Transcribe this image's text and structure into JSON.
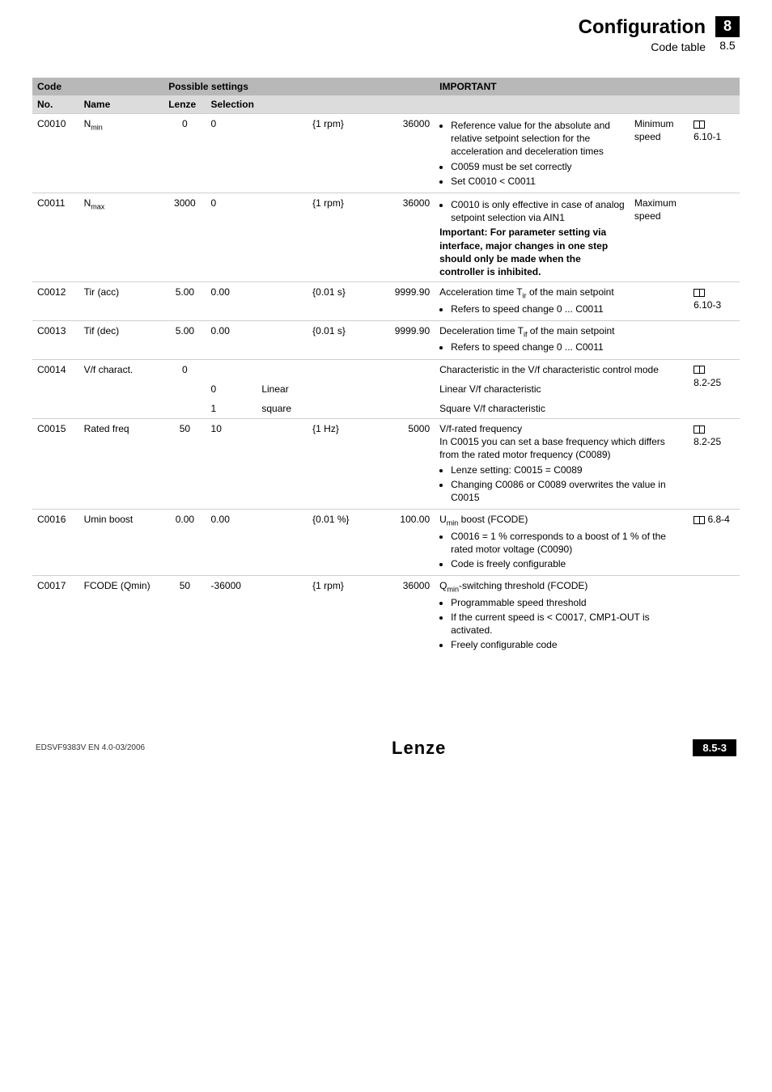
{
  "header": {
    "title": "Configuration",
    "subtitle": "Code table",
    "chapter": "8",
    "section": "8.5"
  },
  "table": {
    "head": {
      "code": "Code",
      "possible": "Possible settings",
      "important": "IMPORTANT",
      "no": "No.",
      "name": "Name",
      "lenze": "Lenze",
      "selection": "Selection"
    },
    "rows": {
      "c0010": {
        "no": "C0010",
        "name_html": "N<sub>min</sub>",
        "lenze": "0",
        "sel_a": "0",
        "sel_unit": "{1 rpm}",
        "sel_b": "36000",
        "imp_list": [
          "Reference value for the absolute and relative setpoint selection for the acceleration and deceleration times",
          "C0059 must be set correctly",
          "Set C0010 < C0011"
        ],
        "imp_mid": "Minimum speed",
        "ref": "6.10-1"
      },
      "c0011": {
        "no": "C0011",
        "name_html": "N<sub>max</sub>",
        "lenze": "3000",
        "sel_a": "0",
        "sel_unit": "{1 rpm}",
        "sel_b": "36000",
        "imp_bullet": "C0010 is only effective in case of analog setpoint selection via AIN1",
        "imp_bold1": "Important: For parameter setting via interface, major changes in one step should only be made when the controller is inhibited.",
        "imp_mid": "Maximum speed"
      },
      "c0012": {
        "no": "C0012",
        "name": "Tir (acc)",
        "lenze": "5.00",
        "sel_a": "0.00",
        "sel_unit": "{0.01 s}",
        "sel_b": "9999.90",
        "imp_line_html": "Acceleration time T<sub>ir</sub> of the main setpoint",
        "imp_list": [
          "Refers to speed change 0 ... C0011"
        ],
        "ref": "6.10-3"
      },
      "c0013": {
        "no": "C0013",
        "name": "Tif (dec)",
        "lenze": "5.00",
        "sel_a": "0.00",
        "sel_unit": "{0.01 s}",
        "sel_b": "9999.90",
        "imp_line_html": "Deceleration time T<sub>if</sub> of the main setpoint",
        "imp_list": [
          "Refers to speed change 0 ... C0011"
        ]
      },
      "c0014": {
        "no": "C0014",
        "name": "V/f charact.",
        "lenze": "0",
        "line1_imp": "Characteristic in the V/f characteristic control mode",
        "opt0_num": "0",
        "opt0_txt": "Linear",
        "opt0_imp": "Linear V/f characteristic",
        "opt1_num": "1",
        "opt1_txt": "square",
        "opt1_imp": "Square V/f characteristic",
        "ref": "8.2-25"
      },
      "c0015": {
        "no": "C0015",
        "name": "Rated freq",
        "lenze": "50",
        "sel_a": "10",
        "sel_unit": "{1 Hz}",
        "sel_b": "5000",
        "imp_line": "V/f-rated frequency",
        "imp_line2": "In C0015 you can set a base frequency which differs from the rated motor frequency (C0089)",
        "imp_list": [
          "Lenze setting: C0015 = C0089",
          "Changing C0086 or C0089 overwrites the value in C0015"
        ],
        "ref": "8.2-25"
      },
      "c0016": {
        "no": "C0016",
        "name": "Umin boost",
        "lenze": "0.00",
        "sel_a": "0.00",
        "sel_unit": "{0.01 %}",
        "sel_b": "100.00",
        "imp_line_html": "U<sub>min</sub> boost (FCODE)",
        "imp_list": [
          "C0016 = 1 % corresponds to a boost of 1 % of the rated motor voltage (C0090)",
          "Code is freely configurable"
        ],
        "ref": "6.8-4"
      },
      "c0017": {
        "no": "C0017",
        "name": "FCODE (Qmin)",
        "lenze": "50",
        "sel_a": "-36000",
        "sel_unit": "{1 rpm}",
        "sel_b": "36000",
        "imp_line_html": "Q<sub>min</sub>-switching threshold (FCODE)",
        "imp_list": [
          "Programmable speed threshold",
          "If the current speed is < C0017, CMP1-OUT is activated.",
          "Freely configurable code"
        ]
      }
    }
  },
  "footer": {
    "left": "EDSVF9383V EN 4.0-03/2006",
    "center": "Lenze",
    "right": "8.5-3"
  }
}
